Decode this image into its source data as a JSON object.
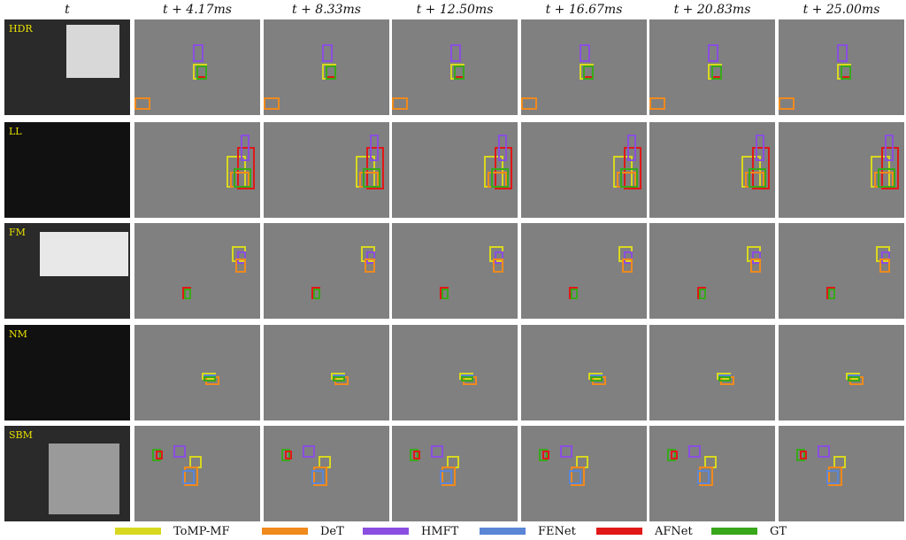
{
  "columns": [
    "t",
    "t + 4.17ms",
    "t + 8.33ms",
    "t + 12.50ms",
    "t + 16.67ms",
    "t + 20.83ms",
    "t + 25.00ms"
  ],
  "rows": [
    {
      "label": "HDR"
    },
    {
      "label": "LL"
    },
    {
      "label": "FM"
    },
    {
      "label": "NM"
    },
    {
      "label": "SBM"
    }
  ],
  "legend": [
    {
      "label": "ToMP-MF",
      "color": "#d8d820"
    },
    {
      "label": "DeT",
      "color": "#f08a1c"
    },
    {
      "label": "HMFT",
      "color": "#8a4ee0"
    },
    {
      "label": "FENet",
      "color": "#5b86d6"
    },
    {
      "label": "AFNet",
      "color": "#e01818"
    },
    {
      "label": "GT",
      "color": "#38a81a"
    }
  ]
}
